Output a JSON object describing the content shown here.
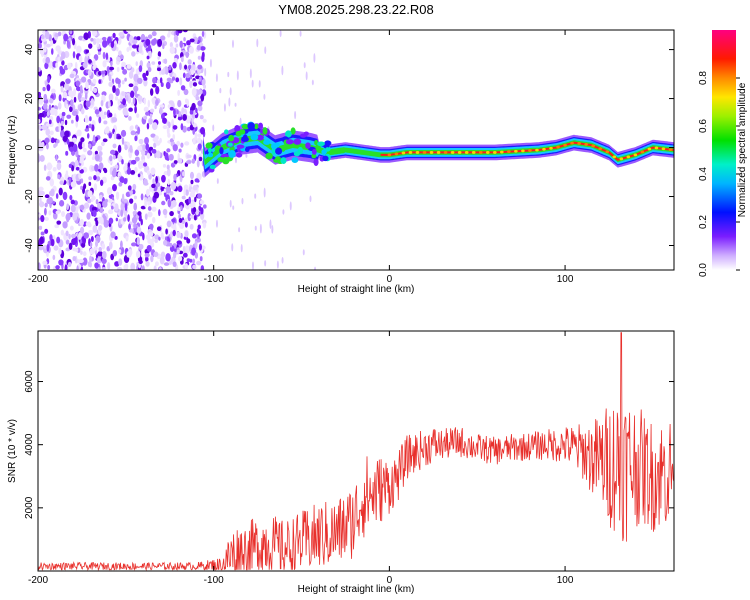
{
  "title": "YM08.2025.298.23.22.R08",
  "chart_data": [
    {
      "type": "heatmap",
      "xlabel": "Height of straight line (km)",
      "ylabel": "Frequency (Hz)",
      "xlim": [
        -200,
        162
      ],
      "ylim": [
        -50,
        48
      ],
      "x_ticks": [
        -200,
        -100,
        0,
        100
      ],
      "x_tick_labels": [
        "-200",
        "-100",
        "0",
        "100"
      ],
      "y_ticks": [
        -40,
        -20,
        0,
        20,
        40
      ],
      "y_tick_labels": [
        "-40",
        "-20",
        "0",
        "20",
        "40"
      ],
      "colorbar": {
        "label": "Normalized spectral amplitude",
        "range": [
          0,
          1
        ],
        "ticks": [
          0.0,
          0.2,
          0.4,
          0.6,
          0.8
        ],
        "tick_labels": [
          "0.0",
          "0.2",
          "0.4",
          "0.6",
          "0.8"
        ]
      },
      "ridge_frequency": {
        "x": [
          -105,
          -95,
          -85,
          -75,
          -65,
          -55,
          -45,
          -35,
          -25,
          -15,
          -5,
          0,
          10,
          30,
          60,
          85,
          95,
          105,
          115,
          125,
          130,
          140,
          150,
          162
        ],
        "y": [
          -6,
          0,
          3,
          4,
          -1,
          1,
          0,
          -2,
          -1,
          -2,
          -3,
          -3,
          -2,
          -2,
          -2,
          -1,
          0,
          2,
          1,
          -2,
          -5,
          -3,
          0,
          -1
        ]
      }
    },
    {
      "type": "line",
      "xlabel": "Height of straight line (km)",
      "ylabel": "SNR (10 * v/v)",
      "xlim": [
        -200,
        162
      ],
      "ylim": [
        0,
        7600
      ],
      "x_ticks": [
        -200,
        -100,
        0,
        100
      ],
      "x_tick_labels": [
        "-200",
        "-100",
        "0",
        "100"
      ],
      "y_ticks": [
        2000,
        4000,
        6000
      ],
      "y_tick_labels": [
        "2000",
        "4000",
        "6000"
      ],
      "series": [
        {
          "name": "SNR",
          "color": "#e8302c",
          "envelope_x": [
            -200,
            -150,
            -110,
            -95,
            -90,
            -80,
            -70,
            -60,
            -50,
            -40,
            -30,
            -20,
            -15,
            -10,
            -5,
            0,
            5,
            10,
            20,
            25,
            30,
            40,
            50,
            60,
            70,
            80,
            90,
            100,
            110,
            115,
            120,
            125,
            130,
            135,
            140,
            145,
            150,
            155,
            162
          ],
          "envelope_mean": [
            150,
            150,
            150,
            200,
            500,
            700,
            900,
            700,
            900,
            1100,
            1200,
            1600,
            2400,
            2400,
            2600,
            2700,
            3000,
            3600,
            3900,
            4000,
            4000,
            4100,
            3900,
            3800,
            3900,
            3950,
            4000,
            4000,
            3800,
            3600,
            3500,
            3400,
            3400,
            3300,
            3400,
            3200,
            3000,
            3100,
            3200
          ],
          "envelope_amp": [
            120,
            120,
            120,
            250,
            900,
            900,
            1000,
            900,
            1000,
            1100,
            1100,
            1200,
            1400,
            1200,
            1100,
            900,
            800,
            700,
            600,
            600,
            500,
            500,
            450,
            450,
            450,
            450,
            500,
            600,
            900,
            1200,
            1500,
            2000,
            2400,
            2400,
            2000,
            1800,
            1800,
            1800,
            1800
          ],
          "peak_x": 132,
          "peak_y": 7550
        }
      ]
    }
  ]
}
